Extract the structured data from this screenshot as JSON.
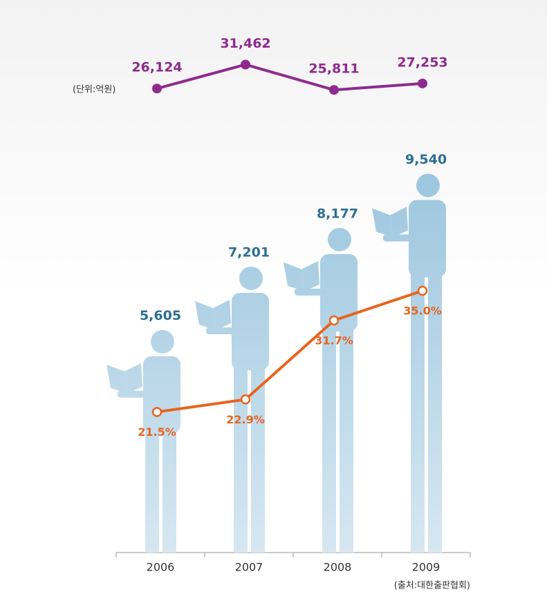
{
  "chart_data": {
    "type": "pictograph",
    "categories": [
      "2006",
      "2007",
      "2008",
      "2009"
    ],
    "unit_label": "(단위:억원)",
    "source": "(출처:대한출판협회)",
    "series": [
      {
        "type": "line",
        "color": "#8e2a8e",
        "values": [
          26124,
          31462,
          25811,
          27253
        ],
        "value_labels": [
          "26,124",
          "31,462",
          "25,811",
          "27,253"
        ],
        "ylim": [
          20000,
          40000
        ]
      },
      {
        "type": "pictograph",
        "color": "#9cc6df",
        "values": [
          5605,
          7201,
          8177,
          9540
        ],
        "value_labels": [
          "5,605",
          "7,201",
          "8,177",
          "9,540"
        ],
        "label_color": "#2c6f90",
        "ylim": [
          0,
          10000
        ]
      },
      {
        "type": "line",
        "color": "#e8641e",
        "values": [
          21.5,
          22.9,
          31.7,
          35.0
        ],
        "value_labels": [
          "21.5%",
          "22.9%",
          "31.7%",
          "35.0%"
        ],
        "ylim": [
          10,
          40
        ],
        "hollow": true
      }
    ]
  }
}
